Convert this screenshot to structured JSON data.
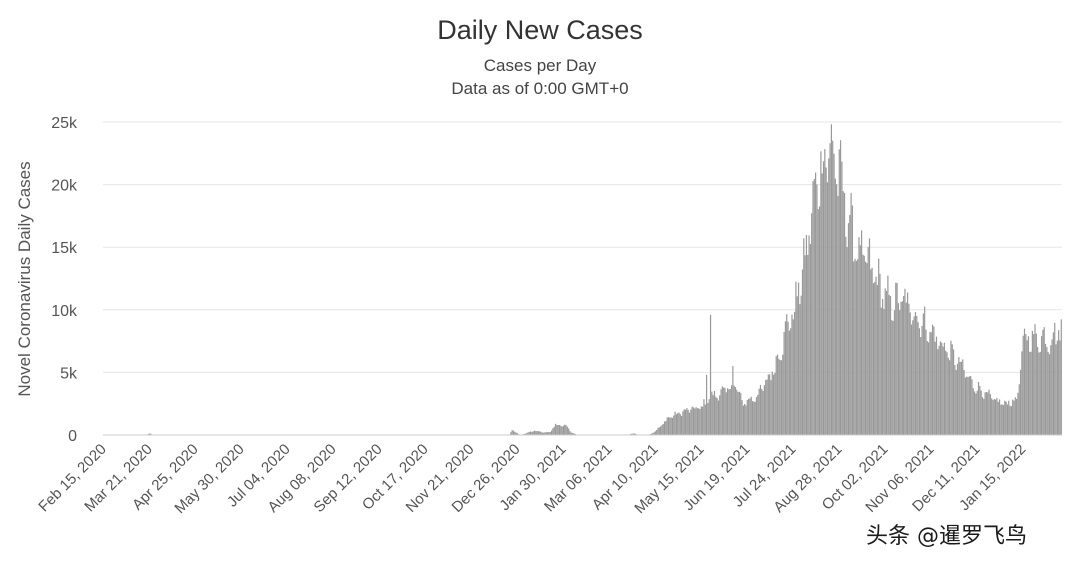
{
  "chart_data": {
    "type": "bar",
    "title": "Daily New Cases",
    "subtitle": "Cases per Day",
    "subtitle2": "Data as of 0:00 GMT+0",
    "ylabel": "Novel Coronavirus Daily Cases",
    "xlabel": "",
    "ylim": [
      0,
      25000
    ],
    "yticks": [
      0,
      5000,
      10000,
      15000,
      20000,
      25000
    ],
    "ytick_labels": [
      "0",
      "5k",
      "10k",
      "15k",
      "20k",
      "25k"
    ],
    "x_start": "2020-02-15",
    "x_end": "2022-02-14",
    "xtick_labels": [
      "Feb 15, 2020",
      "Mar 21, 2020",
      "Apr 25, 2020",
      "May 30, 2020",
      "Jul 04, 2020",
      "Aug 08, 2020",
      "Sep 12, 2020",
      "Oct 17, 2020",
      "Nov 21, 2020",
      "Dec 26, 2020",
      "Jan 30, 2021",
      "Mar 06, 2021",
      "Apr 10, 2021",
      "May 15, 2021",
      "Jun 19, 2021",
      "Jul 24, 2021",
      "Aug 28, 2021",
      "Oct 02, 2021",
      "Nov 06, 2021",
      "Dec 11, 2021",
      "Jan 15, 2022"
    ],
    "grid": true,
    "bar_color": "#999999",
    "series_points": [
      [
        "2020-02-15",
        0
      ],
      [
        "2020-03-18",
        0
      ],
      [
        "2020-03-21",
        120
      ],
      [
        "2020-03-24",
        0
      ],
      [
        "2020-12-20",
        0
      ],
      [
        "2020-12-22",
        400
      ],
      [
        "2020-12-25",
        200
      ],
      [
        "2020-12-28",
        0
      ],
      [
        "2021-01-02",
        150
      ],
      [
        "2021-01-08",
        350
      ],
      [
        "2021-01-15",
        200
      ],
      [
        "2021-01-20",
        250
      ],
      [
        "2021-01-24",
        800
      ],
      [
        "2021-02-02",
        700
      ],
      [
        "2021-02-05",
        200
      ],
      [
        "2021-02-10",
        0
      ],
      [
        "2021-03-20",
        0
      ],
      [
        "2021-03-25",
        150
      ],
      [
        "2021-03-28",
        0
      ],
      [
        "2021-04-05",
        0
      ],
      [
        "2021-04-10",
        300
      ],
      [
        "2021-04-15",
        800
      ],
      [
        "2021-04-20",
        1400
      ],
      [
        "2021-04-25",
        1600
      ],
      [
        "2021-04-30",
        1800
      ],
      [
        "2021-05-05",
        2000
      ],
      [
        "2021-05-10",
        2100
      ],
      [
        "2021-05-15",
        2200
      ],
      [
        "2021-05-20",
        2800
      ],
      [
        "2021-05-25",
        3200
      ],
      [
        "2021-05-30",
        3300
      ],
      [
        "2021-06-05",
        3800
      ],
      [
        "2021-06-10",
        4000
      ],
      [
        "2021-06-15",
        2600
      ],
      [
        "2021-06-19",
        2700
      ],
      [
        "2021-06-25",
        3000
      ],
      [
        "2021-07-01",
        3800
      ],
      [
        "2021-07-05",
        4500
      ],
      [
        "2021-07-10",
        5500
      ],
      [
        "2021-07-15",
        7000
      ],
      [
        "2021-07-20",
        9000
      ],
      [
        "2021-07-24",
        9600
      ],
      [
        "2021-07-28",
        11500
      ],
      [
        "2021-08-02",
        14000
      ],
      [
        "2021-08-06",
        17000
      ],
      [
        "2021-08-10",
        19500
      ],
      [
        "2021-08-14",
        21500
      ],
      [
        "2021-08-19",
        22500
      ],
      [
        "2021-08-22",
        23000
      ],
      [
        "2021-08-25",
        21500
      ],
      [
        "2021-08-28",
        21000
      ],
      [
        "2021-09-02",
        18000
      ],
      [
        "2021-09-06",
        16500
      ],
      [
        "2021-09-10",
        15200
      ],
      [
        "2021-09-15",
        14300
      ],
      [
        "2021-09-20",
        13500
      ],
      [
        "2021-09-25",
        12500
      ],
      [
        "2021-10-02",
        11000
      ],
      [
        "2021-10-08",
        10500
      ],
      [
        "2021-10-15",
        10800
      ],
      [
        "2021-10-20",
        10200
      ],
      [
        "2021-10-25",
        9600
      ],
      [
        "2021-11-01",
        8800
      ],
      [
        "2021-11-06",
        8200
      ],
      [
        "2021-11-12",
        7400
      ],
      [
        "2021-11-18",
        6800
      ],
      [
        "2021-11-25",
        6000
      ],
      [
        "2021-12-01",
        5200
      ],
      [
        "2021-12-06",
        4200
      ],
      [
        "2021-12-11",
        3800
      ],
      [
        "2021-12-16",
        3400
      ],
      [
        "2021-12-22",
        2900
      ],
      [
        "2021-12-28",
        2600
      ],
      [
        "2022-01-03",
        2500
      ],
      [
        "2022-01-08",
        2800
      ],
      [
        "2022-01-11",
        3000
      ],
      [
        "2022-01-13",
        5500
      ],
      [
        "2022-01-15",
        7500
      ],
      [
        "2022-01-20",
        7900
      ],
      [
        "2022-01-25",
        7600
      ],
      [
        "2022-01-30",
        7800
      ],
      [
        "2022-02-04",
        7500
      ],
      [
        "2022-02-08",
        8100
      ],
      [
        "2022-02-14",
        8400
      ]
    ],
    "spikes": [
      [
        "2021-05-19",
        4800
      ],
      [
        "2021-05-22",
        9600
      ],
      [
        "2021-06-08",
        5500
      ],
      [
        "2021-08-21",
        23300
      ],
      [
        "2021-09-12",
        15800
      ],
      [
        "2021-10-03",
        11500
      ]
    ]
  },
  "watermark": "头条 @暹罗飞鸟"
}
